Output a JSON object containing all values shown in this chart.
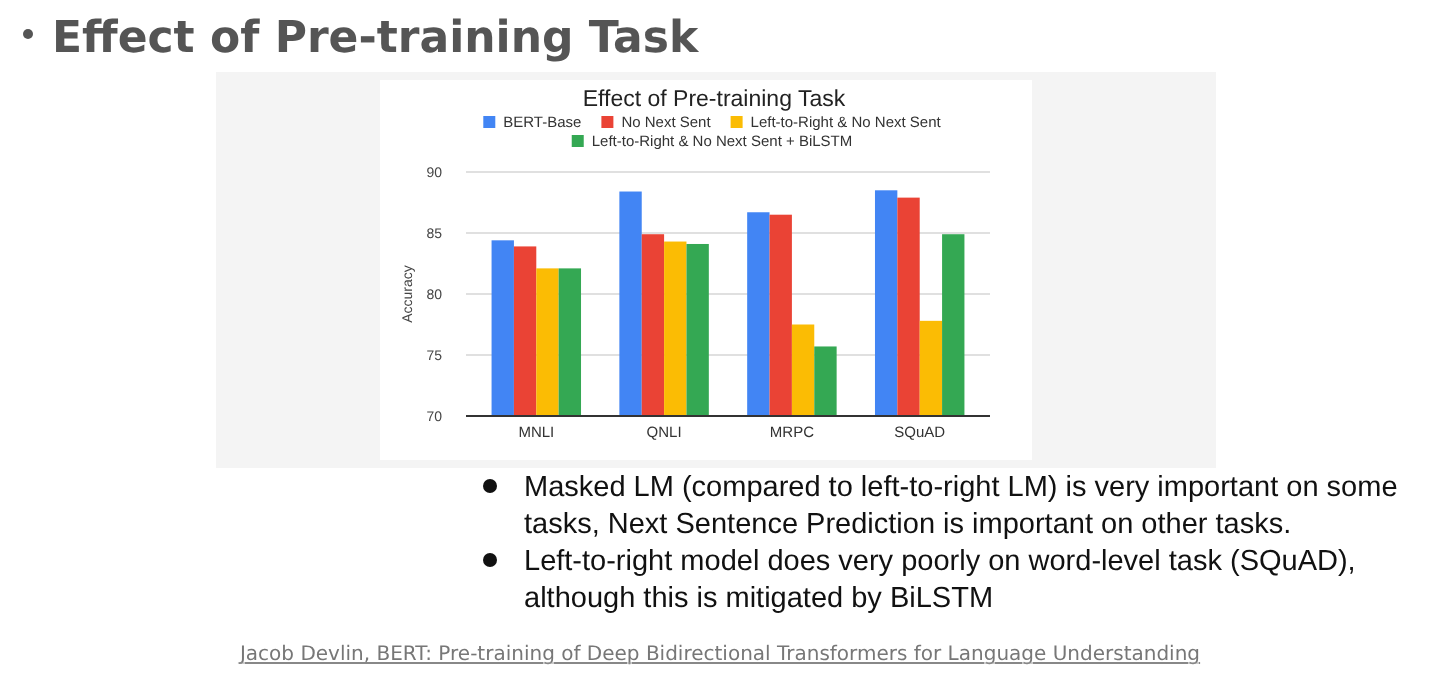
{
  "chart_data": {
    "type": "bar",
    "title": "Effect of Pre-training Task",
    "subtitle": "Effect of Pre-training Task",
    "ylabel": "Accuracy",
    "categories": [
      "MNLI",
      "QNLI",
      "MRPC",
      "SQuAD"
    ],
    "series": [
      {
        "name": "BERT-Base",
        "color": "#4285f4",
        "values": [
          84.4,
          88.4,
          86.7,
          88.5
        ]
      },
      {
        "name": "No Next Sent",
        "color": "#ea4335",
        "values": [
          83.9,
          84.9,
          86.5,
          87.9
        ]
      },
      {
        "name": "Left-to-Right & No Next Sent",
        "color": "#fbbc04",
        "values": [
          82.1,
          84.3,
          77.5,
          77.8
        ]
      },
      {
        "name": "Left-to-Right & No Next Sent + BiLSTM",
        "color": "#34a853",
        "values": [
          82.1,
          84.1,
          75.7,
          84.9
        ]
      }
    ],
    "ylim": [
      70,
      90
    ],
    "yticks": [
      70,
      75,
      80,
      85,
      90
    ],
    "grid": "y",
    "legend": "top",
    "annotations": [
      "Masked LM (compared to left-to-right LM) is very important on some tasks, Next Sentence Prediction is important on other tasks.",
      "Left-to-right model does very poorly on word-level task (SQuAD), although this is mitigated by BiLSTM",
      "Jacob Devlin, BERT: Pre-training of Deep Bidirectional Transformers for Language Understanding"
    ]
  }
}
